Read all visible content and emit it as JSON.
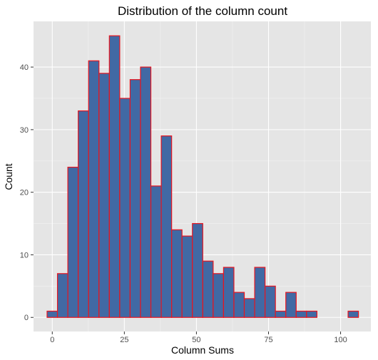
{
  "chart_data": {
    "type": "bar",
    "subtype": "histogram",
    "title": "Distribution of the column count",
    "xlabel": "Column Sums",
    "ylabel": "Count",
    "bin_width": 3.6,
    "first_bin_center": 0,
    "counts": [
      1,
      7,
      24,
      33,
      41,
      39,
      45,
      35,
      38,
      40,
      21,
      29,
      14,
      13,
      15,
      9,
      7,
      8,
      4,
      3,
      8,
      5,
      1,
      4,
      1,
      1,
      0,
      0,
      0,
      1
    ],
    "xlim": [
      -6.5,
      110.5
    ],
    "ylim": [
      -2.25,
      47.3
    ],
    "x_ticks": [
      0,
      25,
      50,
      75,
      100
    ],
    "x_tick_labels": [
      "0",
      "25",
      "50",
      "75",
      "100"
    ],
    "y_ticks": [
      0,
      10,
      20,
      30,
      40
    ],
    "y_tick_labels": [
      "0",
      "10",
      "20",
      "30",
      "40"
    ],
    "grid": true,
    "legend": "none",
    "colors": {
      "fill": "#4169A4",
      "outline": "#E8151F",
      "panel_background": "#E5E5E5",
      "grid_major": "#FFFFFF",
      "grid_minor": "#F2F2F2"
    }
  }
}
